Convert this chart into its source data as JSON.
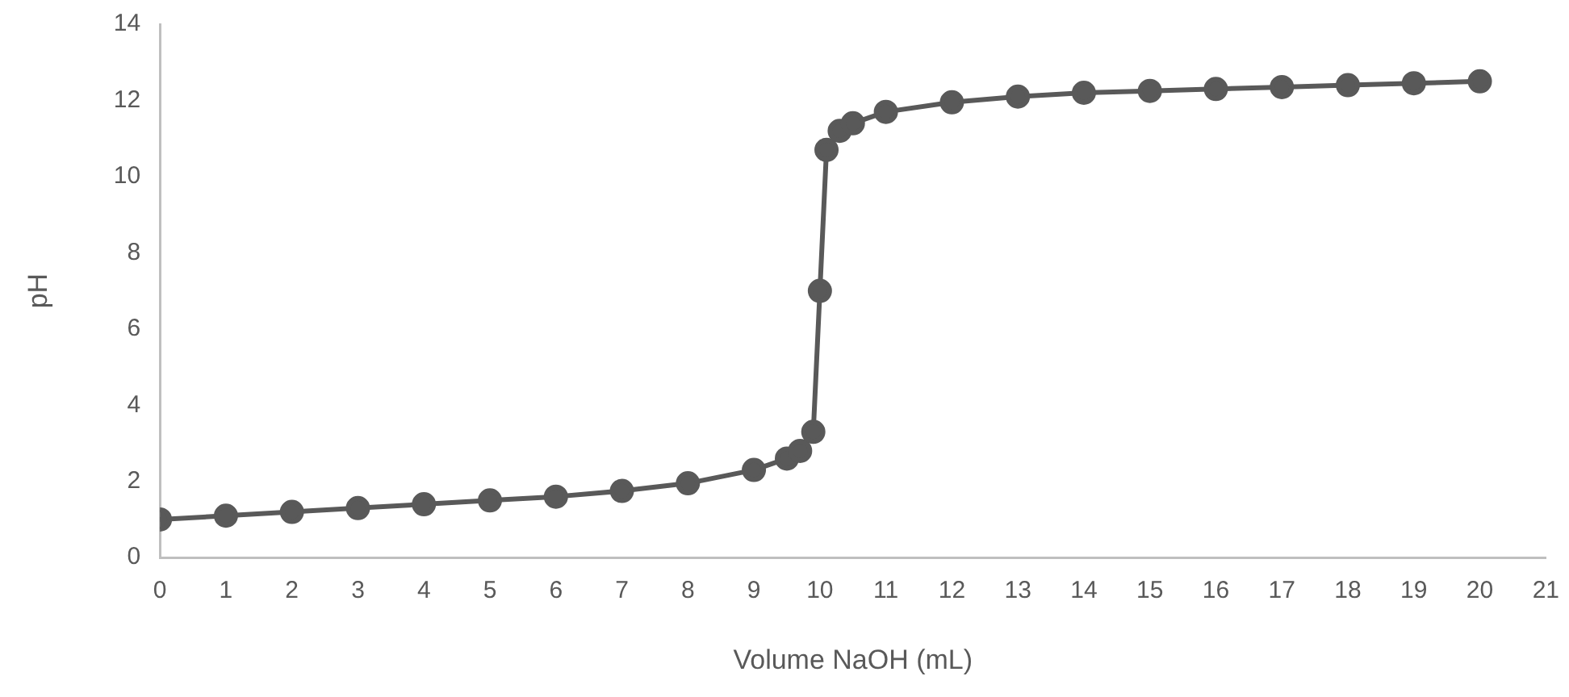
{
  "chart_data": {
    "type": "line",
    "xlabel": "Volume NaOH (mL)",
    "ylabel": "pH",
    "x": [
      0,
      1,
      2,
      3,
      4,
      5,
      6,
      7,
      8,
      9,
      9.5,
      9.7,
      9.9,
      10,
      10.1,
      10.3,
      10.5,
      11,
      12,
      13,
      14,
      15,
      16,
      17,
      18,
      19,
      20
    ],
    "series": [
      {
        "color": "#595959",
        "values": [
          1.0,
          1.1,
          1.2,
          1.3,
          1.4,
          1.5,
          1.6,
          1.75,
          1.95,
          2.3,
          2.6,
          2.8,
          3.3,
          7.0,
          10.7,
          11.2,
          11.4,
          11.7,
          11.95,
          12.1,
          12.2,
          12.25,
          12.3,
          12.35,
          12.4,
          12.45,
          12.5
        ]
      }
    ],
    "xlim": [
      0,
      21
    ],
    "xticks": [
      0,
      1,
      2,
      3,
      4,
      5,
      6,
      7,
      8,
      9,
      10,
      11,
      12,
      13,
      14,
      15,
      16,
      17,
      18,
      19,
      20,
      21
    ],
    "ylim": [
      0,
      14
    ],
    "yticks": [
      0,
      2,
      4,
      6,
      8,
      10,
      12,
      14
    ],
    "grid": false,
    "legend": false,
    "marker": "circle",
    "line_style": "solid"
  }
}
